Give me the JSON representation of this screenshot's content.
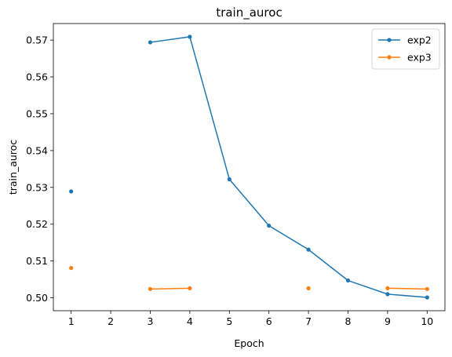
{
  "chart_data": {
    "type": "line",
    "title": "train_auroc",
    "xlabel": "Epoch",
    "ylabel": "train_auroc",
    "xlim": [
      0.55,
      10.45
    ],
    "ylim": [
      0.4965,
      0.5745
    ],
    "x_ticks": [
      1,
      2,
      3,
      4,
      5,
      6,
      7,
      8,
      9,
      10
    ],
    "y_ticks": [
      0.5,
      0.51,
      0.52,
      0.53,
      0.54,
      0.55,
      0.56,
      0.57
    ],
    "y_tick_labels": [
      "0.50",
      "0.51",
      "0.52",
      "0.53",
      "0.54",
      "0.55",
      "0.56",
      "0.57"
    ],
    "grid": false,
    "legend_position": "top-right",
    "series": [
      {
        "name": "exp2",
        "color": "#1f77b4",
        "x": [
          1,
          2,
          3,
          4,
          5,
          6,
          7,
          8,
          9,
          10
        ],
        "y": [
          0.5289,
          null,
          0.5694,
          0.5709,
          0.5322,
          0.5196,
          0.5131,
          0.5047,
          0.501,
          0.5001
        ]
      },
      {
        "name": "exp3",
        "color": "#ff7f0e",
        "x": [
          1,
          2,
          3,
          4,
          5,
          6,
          7,
          8,
          9,
          10
        ],
        "y": [
          0.5081,
          null,
          0.5024,
          0.5026,
          null,
          null,
          0.5026,
          null,
          0.5026,
          0.5024
        ]
      }
    ]
  }
}
